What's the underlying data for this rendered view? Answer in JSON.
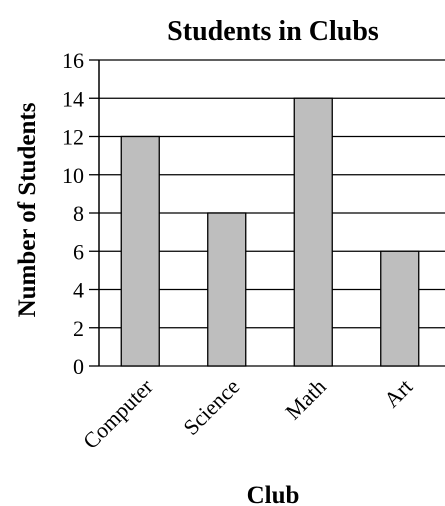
{
  "chart_data": {
    "type": "bar",
    "title": "Students in Clubs",
    "xlabel": "Club",
    "ylabel": "Number of Students",
    "categories": [
      "Computer",
      "Science",
      "Math",
      "Art"
    ],
    "values": [
      12,
      8,
      14,
      6
    ],
    "ylim": [
      0,
      16
    ],
    "yticks": [
      0,
      2,
      4,
      6,
      8,
      10,
      12,
      14,
      16
    ],
    "grid": true,
    "bar_color": "#bebebe",
    "bar_edge_color": "#000000"
  }
}
